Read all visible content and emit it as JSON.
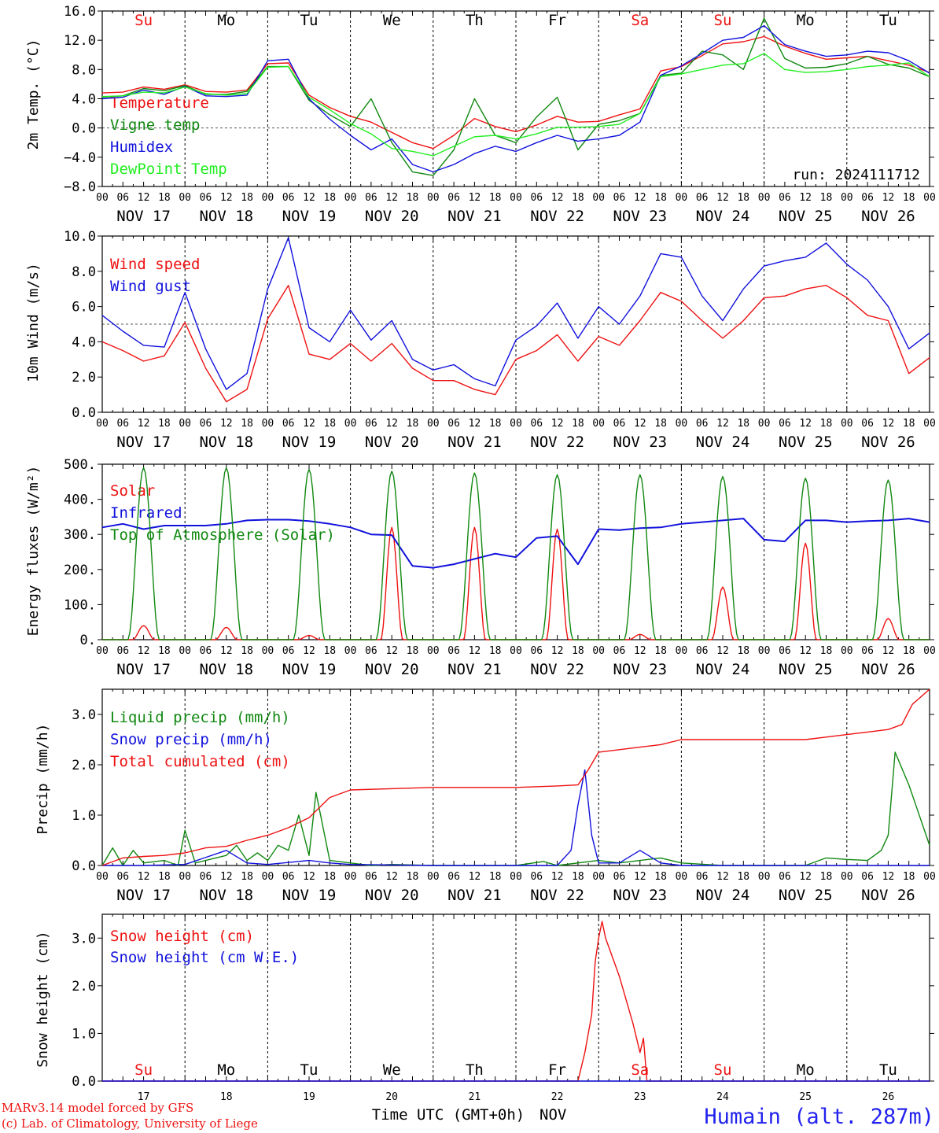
{
  "colors": {
    "temperature": "#ee1111",
    "vigne": "#118811",
    "humidex": "#1111dd",
    "dewpoint": "#22ee22",
    "axis": "#000000",
    "sunday": "#ee1111",
    "weekday": "#000000",
    "site": "#2222ee"
  },
  "days": {
    "short": [
      "Su",
      "Mo",
      "Tu",
      "We",
      "Th",
      "Fr",
      "Sa",
      "Su",
      "Mo",
      "Tu"
    ],
    "dates": [
      "NOV 17",
      "NOV 18",
      "NOV 19",
      "NOV 20",
      "NOV 21",
      "NOV 22",
      "NOV 23",
      "NOV 24",
      "NOV 25",
      "NOV 26"
    ],
    "numbers": [
      "17",
      "18",
      "19",
      "20",
      "21",
      "22",
      "23",
      "24",
      "25",
      "26"
    ],
    "hour_ticks": [
      "00",
      "06",
      "12",
      "18"
    ],
    "final_hour": "00"
  },
  "footer": {
    "model": "MARv3.14 model forced by GFS",
    "lab": "(c) Lab. of Climatology, University of Liege",
    "xlabel": "Time UTC (GMT+0h)",
    "month": "NOV",
    "site": "Humain (alt. 287m)"
  },
  "chart_data": [
    {
      "type": "line",
      "ylabel": "2m Temp. (°C)",
      "yticks": [
        "16.0",
        "12.0",
        "8.0",
        "4.0",
        "0.0",
        "−4.0",
        "−8.0"
      ],
      "ylim": [
        -8,
        16
      ],
      "reference_line": 0,
      "annotation": "run: 2024111712",
      "x": [
        0,
        6,
        12,
        18,
        24,
        30,
        36,
        42,
        48,
        54,
        60,
        66,
        72,
        78,
        84,
        90,
        96,
        102,
        108,
        114,
        120,
        126,
        132,
        138,
        144,
        150,
        156,
        162,
        168,
        174,
        180,
        186,
        192,
        198,
        204,
        210,
        216,
        222,
        228,
        234,
        240
      ],
      "series": [
        {
          "name": "Temperature",
          "color": "temperature",
          "values": [
            4.8,
            4.9,
            5.6,
            5.3,
            5.9,
            5.0,
            4.9,
            5.2,
            8.8,
            8.9,
            4.5,
            2.8,
            1.6,
            0.8,
            -0.6,
            -2.0,
            -2.8,
            -1.0,
            1.3,
            0.2,
            -0.5,
            0.4,
            1.6,
            0.8,
            0.9,
            1.8,
            2.6,
            7.8,
            8.4,
            9.9,
            11.5,
            11.8,
            12.5,
            11.2,
            10.2,
            9.4,
            9.6,
            9.8,
            9.2,
            8.6,
            7.6
          ]
        },
        {
          "name": "Vigne temp",
          "color": "vigne",
          "values": [
            4.2,
            4.4,
            5.4,
            5.1,
            5.8,
            4.6,
            4.6,
            5.0,
            8.4,
            8.4,
            3.8,
            1.8,
            0.2,
            4.0,
            -2.0,
            -6.0,
            -6.5,
            -3.0,
            4.0,
            -1.0,
            -2.0,
            1.5,
            4.2,
            -3.0,
            0.5,
            1.0,
            2.0,
            7.2,
            7.5,
            10.5,
            10.0,
            8.0,
            15.0,
            9.5,
            8.2,
            8.3,
            8.8,
            9.8,
            8.7,
            8.2,
            7.0
          ]
        },
        {
          "name": "Humidex",
          "color": "humidex",
          "values": [
            4.0,
            4.2,
            5.2,
            4.6,
            5.7,
            4.4,
            4.3,
            4.5,
            9.2,
            9.4,
            4.0,
            1.2,
            -1.0,
            -3.0,
            -1.5,
            -5.0,
            -6.0,
            -5.0,
            -3.5,
            -2.5,
            -3.2,
            -2.0,
            -1.0,
            -1.8,
            -1.5,
            -1.0,
            0.8,
            7.2,
            8.5,
            10.2,
            12.0,
            12.4,
            14.0,
            11.4,
            10.5,
            9.8,
            10.0,
            10.5,
            10.3,
            9.2,
            7.5
          ]
        },
        {
          "name": "DewPoint Temp",
          "color": "dewpoint",
          "values": [
            4.3,
            4.4,
            4.9,
            4.8,
            5.6,
            4.7,
            4.5,
            4.7,
            8.3,
            8.4,
            4.2,
            2.5,
            0.6,
            -0.8,
            -2.8,
            -3.2,
            -3.8,
            -2.5,
            -1.2,
            -1.0,
            -1.5,
            -0.8,
            0.1,
            0.1,
            0.2,
            0.5,
            2.0,
            7.0,
            7.4,
            8.0,
            8.6,
            8.8,
            10.2,
            8.0,
            7.6,
            7.7,
            8.0,
            8.4,
            8.6,
            8.9,
            7.0
          ]
        }
      ]
    },
    {
      "type": "line",
      "ylabel": "10m Wind (m/s)",
      "yticks": [
        "10.0",
        "8.0",
        "6.0",
        "4.0",
        "2.0",
        "0.0"
      ],
      "ylim": [
        0,
        10
      ],
      "reference_line": 5,
      "x": [
        0,
        6,
        12,
        18,
        24,
        30,
        36,
        42,
        48,
        54,
        60,
        66,
        72,
        78,
        84,
        90,
        96,
        102,
        108,
        114,
        120,
        126,
        132,
        138,
        144,
        150,
        156,
        162,
        168,
        174,
        180,
        186,
        192,
        198,
        204,
        210,
        216,
        222,
        228,
        234,
        240
      ],
      "series": [
        {
          "name": "Wind speed",
          "color": "temperature",
          "values": [
            4.0,
            3.5,
            2.9,
            3.2,
            5.1,
            2.5,
            0.6,
            1.3,
            5.3,
            7.2,
            3.3,
            3.0,
            3.9,
            2.9,
            3.9,
            2.5,
            1.8,
            1.8,
            1.3,
            1.0,
            3.0,
            3.5,
            4.4,
            2.9,
            4.3,
            3.8,
            5.2,
            6.8,
            6.3,
            5.2,
            4.2,
            5.2,
            6.5,
            6.6,
            7.0,
            7.2,
            6.5,
            5.5,
            5.2,
            2.2,
            3.1
          ]
        },
        {
          "name": "Wind gust",
          "color": "humidex",
          "values": [
            5.5,
            4.6,
            3.8,
            3.7,
            6.8,
            3.6,
            1.3,
            2.2,
            7.0,
            9.9,
            4.8,
            4.0,
            5.8,
            4.1,
            5.2,
            3.0,
            2.4,
            2.7,
            1.9,
            1.5,
            4.1,
            4.9,
            6.2,
            4.2,
            6.0,
            5.0,
            6.6,
            9.0,
            8.8,
            6.6,
            5.2,
            7.0,
            8.3,
            8.6,
            8.8,
            9.6,
            8.4,
            7.5,
            6.0,
            3.6,
            4.5
          ]
        }
      ]
    },
    {
      "type": "line",
      "ylabel": "Energy fluxes (W/m²)",
      "yticks": [
        "500.",
        "400.",
        "300.",
        "200.",
        "100.",
        "0."
      ],
      "ylim": [
        0,
        500
      ],
      "series": [
        {
          "name": "Solar",
          "color": "temperature",
          "peaks": [
            40,
            35,
            12,
            320,
            320,
            315,
            15,
            150,
            275,
            60
          ]
        },
        {
          "name": "Infrared",
          "color": "humidex",
          "x": [
            0,
            6,
            12,
            18,
            24,
            30,
            36,
            42,
            48,
            54,
            60,
            66,
            72,
            78,
            84,
            90,
            96,
            102,
            108,
            114,
            120,
            126,
            132,
            138,
            144,
            150,
            156,
            162,
            168,
            174,
            180,
            186,
            192,
            198,
            204,
            210,
            216,
            222,
            228,
            234,
            240
          ],
          "values": [
            320,
            330,
            315,
            325,
            325,
            325,
            330,
            340,
            342,
            342,
            338,
            330,
            320,
            300,
            298,
            210,
            205,
            215,
            230,
            245,
            235,
            290,
            295,
            215,
            315,
            312,
            318,
            320,
            330,
            335,
            340,
            345,
            285,
            280,
            340,
            340,
            335,
            338,
            340,
            345,
            335
          ]
        },
        {
          "name": "Top of Atmosphere (Solar)",
          "color": "vigne",
          "peaks": [
            490,
            490,
            485,
            480,
            475,
            470,
            470,
            465,
            460,
            455
          ]
        }
      ]
    },
    {
      "type": "line",
      "ylabel": "Precip (mm/h)",
      "yticks": [
        "3.0",
        "2.0",
        "1.0",
        "0.0"
      ],
      "ylim": [
        0,
        3.5
      ],
      "series": [
        {
          "name": "Liquid precip (mm/h)",
          "color": "vigne",
          "x": [
            0,
            3,
            6,
            9,
            12,
            18,
            22,
            24,
            27,
            30,
            36,
            39,
            42,
            45,
            48,
            51,
            54,
            57,
            60,
            62,
            66,
            72,
            78,
            84,
            96,
            120,
            128,
            132,
            144,
            150,
            156,
            162,
            168,
            180,
            204,
            210,
            216,
            222,
            226,
            228,
            230,
            234,
            236,
            240
          ],
          "values": [
            0.0,
            0.35,
            0.0,
            0.3,
            0.05,
            0.1,
            0.0,
            0.7,
            0.05,
            0.1,
            0.2,
            0.4,
            0.1,
            0.25,
            0.1,
            0.4,
            0.3,
            1.0,
            0.2,
            1.45,
            0.1,
            0.05,
            0.0,
            0.02,
            0.0,
            0.0,
            0.08,
            0.0,
            0.1,
            0.05,
            0.1,
            0.15,
            0.05,
            0.0,
            0.0,
            0.15,
            0.12,
            0.1,
            0.3,
            0.6,
            2.25,
            1.6,
            1.2,
            0.4
          ]
        },
        {
          "name": "Snow precip (mm/h)",
          "color": "humidex",
          "x": [
            0,
            12,
            24,
            36,
            42,
            48,
            60,
            66,
            72,
            96,
            132,
            136,
            138,
            140,
            142,
            144,
            150,
            156,
            162,
            168,
            240
          ],
          "values": [
            0,
            0,
            0.02,
            0.3,
            0.05,
            0.02,
            0.1,
            0.05,
            0.02,
            0,
            0,
            0.3,
            1.2,
            1.9,
            0.6,
            0.05,
            0.05,
            0.3,
            0.05,
            0,
            0
          ]
        },
        {
          "name": "Total cumulated (cm)",
          "color": "temperature",
          "x": [
            0,
            6,
            12,
            18,
            24,
            30,
            36,
            42,
            48,
            54,
            60,
            66,
            72,
            96,
            120,
            132,
            138,
            141,
            144,
            150,
            156,
            162,
            168,
            180,
            204,
            210,
            216,
            222,
            228,
            232,
            235,
            240
          ],
          "values": [
            0.0,
            0.15,
            0.18,
            0.2,
            0.25,
            0.35,
            0.38,
            0.5,
            0.6,
            0.75,
            0.95,
            1.35,
            1.5,
            1.55,
            1.55,
            1.58,
            1.6,
            1.9,
            2.25,
            2.3,
            2.35,
            2.4,
            2.5,
            2.5,
            2.5,
            2.55,
            2.6,
            2.65,
            2.7,
            2.8,
            3.2,
            3.5
          ]
        }
      ]
    },
    {
      "type": "line",
      "ylabel": "Snow height (cm)",
      "yticks": [
        "3.0",
        "2.0",
        "1.0",
        "0.0"
      ],
      "ylim": [
        0,
        3.5
      ],
      "series": [
        {
          "name": "Snow height (cm)",
          "color": "temperature",
          "x": [
            0,
            138,
            140,
            142,
            143,
            144,
            145,
            146,
            150,
            154,
            156,
            157,
            158,
            240
          ],
          "values": [
            0,
            0,
            0.6,
            1.4,
            2.5,
            3.0,
            3.35,
            3.0,
            2.2,
            1.2,
            0.6,
            0.9,
            0.0,
            0
          ]
        },
        {
          "name": "Snow height (cm W.E.)",
          "color": "humidex",
          "x": [
            0,
            240
          ],
          "values": [
            0,
            0
          ]
        }
      ]
    }
  ]
}
